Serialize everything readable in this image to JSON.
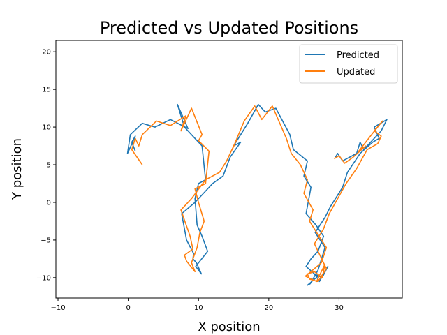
{
  "chart_data": {
    "type": "line",
    "title": "Predicted vs Updated Positions",
    "xlabel": "X position",
    "ylabel": "Y position",
    "xlim": [
      -10.3,
      39.0
    ],
    "ylim": [
      -12.7,
      21.5
    ],
    "xticks": [
      -10,
      0,
      10,
      20,
      30
    ],
    "yticks": [
      -10,
      -5,
      0,
      5,
      10,
      15,
      20
    ],
    "grid": false,
    "legend_position": "top-right",
    "series": [
      {
        "name": "Predicted",
        "color": "#1f77b4",
        "x": [
          1.0,
          0.5,
          1.0,
          -0.1,
          0.3,
          2.0,
          3.8,
          6.0,
          8.5,
          7.0,
          8.0,
          9.5,
          10.5,
          11.0,
          10.0,
          9.5,
          9.8,
          10.5,
          11.3,
          9.6,
          10.4,
          9.7,
          9.2,
          9.3,
          8.3,
          7.6,
          9.5,
          12.0,
          13.5,
          14.5,
          16.0,
          15.0,
          17.0,
          18.5,
          19.5,
          21.0,
          23.0,
          23.5,
          25.5,
          25.0,
          26.0,
          25.3,
          26.7,
          27.8,
          27.0,
          26.0,
          25.3,
          26.5,
          27.6,
          28.4,
          27.2,
          26.5,
          27.0,
          25.5,
          25.9,
          27.0,
          28.0,
          26.6,
          28.0,
          28.8,
          30.5,
          31.2,
          33.0,
          34.8,
          35.7,
          35.0,
          36.8,
          36.0,
          33.5,
          33.0,
          32.5,
          30.5,
          29.8,
          29.5
        ],
        "y": [
          6.8,
          8.0,
          8.8,
          6.5,
          9.0,
          10.5,
          10.0,
          11.0,
          9.8,
          13.0,
          10.0,
          8.5,
          7.5,
          3.0,
          2.5,
          0.5,
          -3.0,
          -4.5,
          -6.5,
          -8.5,
          -9.5,
          -8.0,
          -7.5,
          -6.8,
          -5.0,
          -1.5,
          0.0,
          2.5,
          3.5,
          6.0,
          8.0,
          7.5,
          10.5,
          13.0,
          12.0,
          12.5,
          9.0,
          7.0,
          5.5,
          3.5,
          2.0,
          -1.5,
          -3.0,
          -4.5,
          -6.5,
          -7.5,
          -8.5,
          -9.5,
          -10.0,
          -8.5,
          -10.5,
          -9.5,
          -9.8,
          -11.0,
          -10.8,
          -9.0,
          -6.0,
          -4.0,
          -2.0,
          -0.5,
          2.0,
          4.0,
          6.5,
          8.0,
          8.5,
          10.0,
          11.0,
          9.5,
          7.0,
          8.0,
          6.5,
          5.5,
          6.5,
          6.0
        ],
        "__note": ""
      },
      {
        "name": "Updated",
        "color": "#ff7f0e",
        "x": [
          2.0,
          0.5,
          1.0,
          1.5,
          2.0,
          4.0,
          6.0,
          8.2,
          7.5,
          9.0,
          10.5,
          10.0,
          11.5,
          11.0,
          9.5,
          10.0,
          10.8,
          10.2,
          9.8,
          9.0,
          9.5,
          8.3,
          8.0,
          9.2,
          8.8,
          7.5,
          9.0,
          11.0,
          13.0,
          14.0,
          15.5,
          14.8,
          16.5,
          18.0,
          19.0,
          20.5,
          22.5,
          23.2,
          24.5,
          25.5,
          25.0,
          26.3,
          25.8,
          26.8,
          28.2,
          27.5,
          26.5,
          25.2,
          26.8,
          28.0,
          27.6,
          26.5,
          25.5,
          25.8,
          27.0,
          28.2,
          26.5,
          27.8,
          28.6,
          29.5,
          31.0,
          32.5,
          34.0,
          35.5,
          36.0,
          35.0,
          36.2,
          34.8,
          32.8,
          33.8,
          32.0,
          30.8,
          30.0,
          29.3
        ],
        "y": [
          5.0,
          7.0,
          8.5,
          7.5,
          9.0,
          10.8,
          10.2,
          11.5,
          9.5,
          12.5,
          9.0,
          8.2,
          6.8,
          2.5,
          1.8,
          0.0,
          -2.5,
          -4.0,
          -6.0,
          -8.0,
          -9.2,
          -7.8,
          -7.0,
          -6.2,
          -4.5,
          -1.0,
          0.5,
          3.0,
          4.0,
          5.5,
          8.5,
          7.0,
          10.8,
          12.8,
          11.0,
          12.8,
          8.5,
          6.5,
          5.0,
          3.0,
          1.2,
          -1.0,
          -2.5,
          -4.0,
          -6.0,
          -8.0,
          -8.8,
          -9.8,
          -10.5,
          -8.2,
          -10.0,
          -9.2,
          -9.5,
          -10.2,
          -10.5,
          -8.8,
          -5.5,
          -3.5,
          -1.5,
          0.0,
          2.5,
          4.5,
          7.0,
          7.8,
          8.8,
          9.5,
          10.8,
          9.2,
          6.8,
          7.5,
          6.0,
          5.2,
          6.2,
          5.8
        ],
        "__note": ""
      }
    ]
  }
}
